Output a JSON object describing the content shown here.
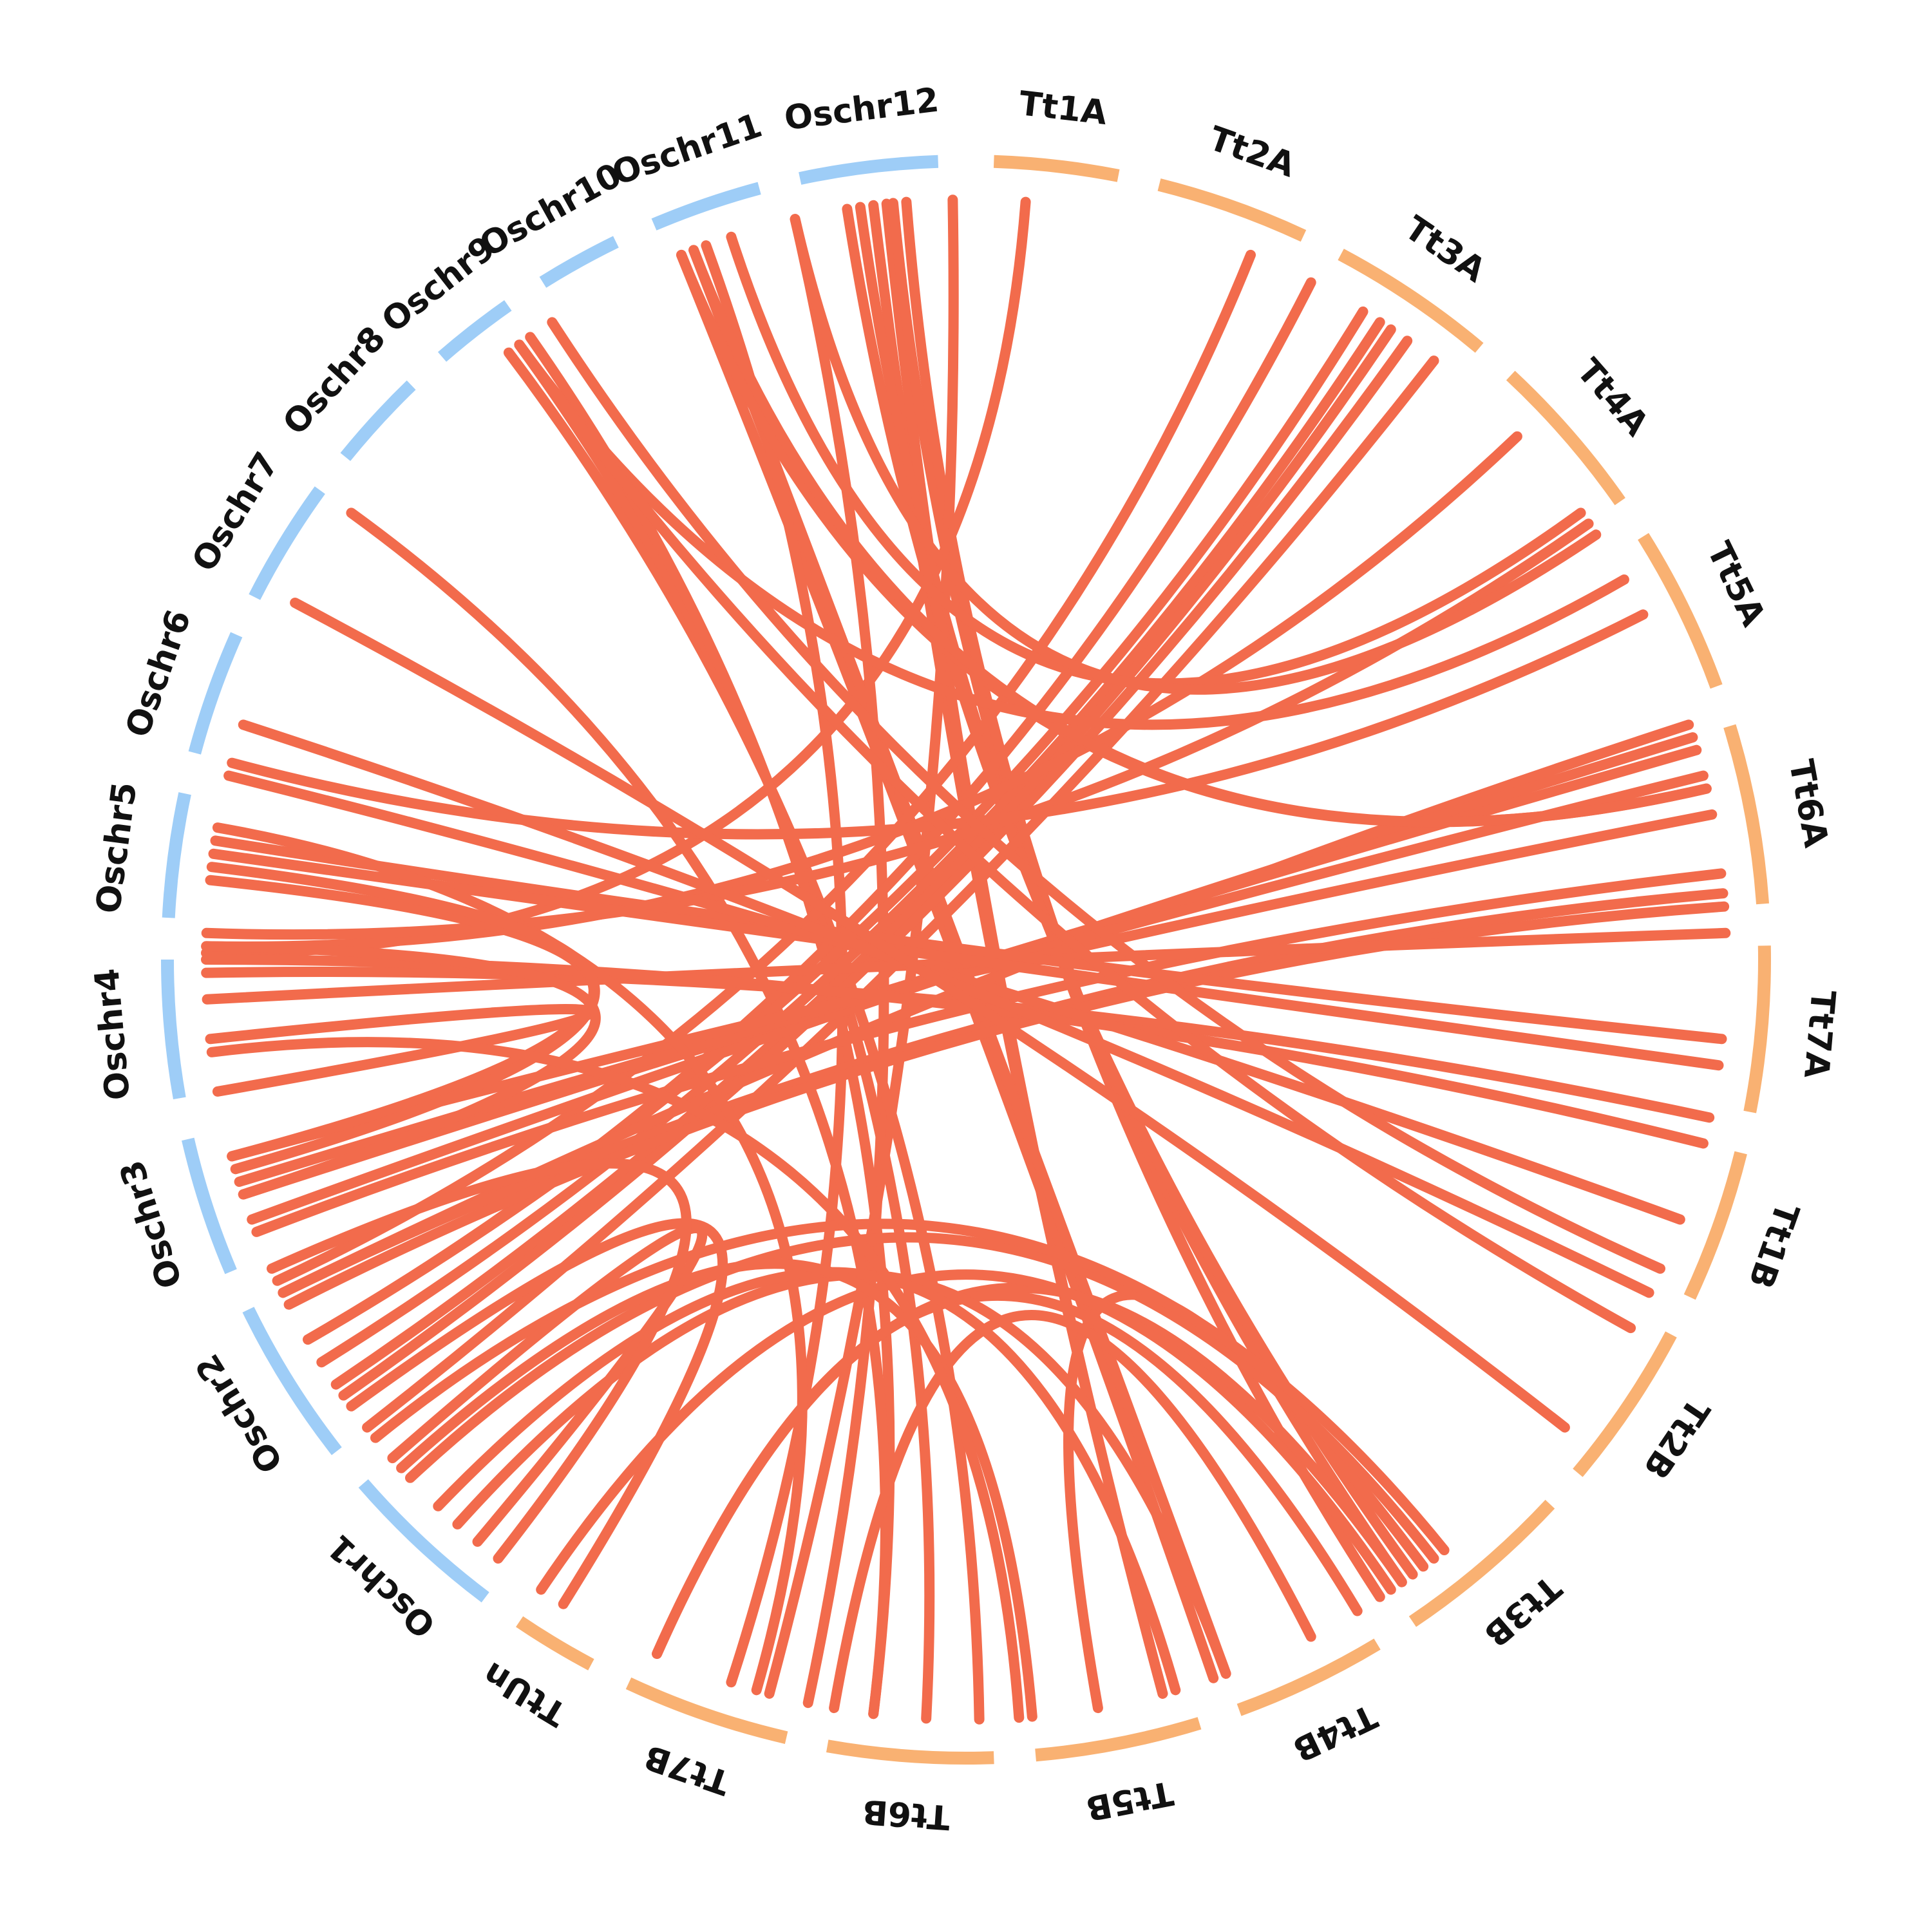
{
  "colors": {
    "rice": "#9ECDF7",
    "wheat": "#F9B172",
    "link": "#F26B4C",
    "label": "#111111",
    "background": "#FFFFFF"
  },
  "segments": [
    {
      "id": "Tt1A",
      "label": "Tt1A",
      "genome": "wheat",
      "start_deg": 2,
      "end_deg": 11
    },
    {
      "id": "Tt2A",
      "label": "Tt2A",
      "genome": "wheat",
      "start_deg": 14,
      "end_deg": 25
    },
    {
      "id": "Tt3A",
      "label": "Tt3A",
      "genome": "wheat",
      "start_deg": 28,
      "end_deg": 40
    },
    {
      "id": "Tt4A",
      "label": "Tt4A",
      "genome": "wheat",
      "start_deg": 43,
      "end_deg": 55
    },
    {
      "id": "Tt5A",
      "label": "Tt5A",
      "genome": "wheat",
      "start_deg": 58,
      "end_deg": 70
    },
    {
      "id": "Tt6A",
      "label": "Tt6A",
      "genome": "wheat",
      "start_deg": 73,
      "end_deg": 86
    },
    {
      "id": "Tt7A",
      "label": "Tt7A",
      "genome": "wheat",
      "start_deg": 89,
      "end_deg": 101
    },
    {
      "id": "Tt1B",
      "label": "Tt1B",
      "genome": "wheat",
      "start_deg": 104,
      "end_deg": 115
    },
    {
      "id": "Tt2B",
      "label": "Tt2B",
      "genome": "wheat",
      "start_deg": 118,
      "end_deg": 130
    },
    {
      "id": "Tt3B",
      "label": "Tt3B",
      "genome": "wheat",
      "start_deg": 133,
      "end_deg": 146
    },
    {
      "id": "Tt4B",
      "label": "Tt4B",
      "genome": "wheat",
      "start_deg": 149,
      "end_deg": 160
    },
    {
      "id": "Tt5B",
      "label": "Tt5B",
      "genome": "wheat",
      "start_deg": 163,
      "end_deg": 175
    },
    {
      "id": "Tt6B",
      "label": "Tt6B",
      "genome": "wheat",
      "start_deg": 178,
      "end_deg": 190
    },
    {
      "id": "Tt7B",
      "label": "Tt7B",
      "genome": "wheat",
      "start_deg": 193,
      "end_deg": 205
    },
    {
      "id": "TtUn",
      "label": "TtUn",
      "genome": "wheat",
      "start_deg": 208,
      "end_deg": 214
    },
    {
      "id": "Oschr1",
      "label": "Oschr1",
      "genome": "rice",
      "start_deg": 217,
      "end_deg": 229
    },
    {
      "id": "Oschr2",
      "label": "Oschr2",
      "genome": "rice",
      "start_deg": 232,
      "end_deg": 244
    },
    {
      "id": "Oschr3",
      "label": "Oschr3",
      "genome": "rice",
      "start_deg": 247,
      "end_deg": 257
    },
    {
      "id": "Oschr4",
      "label": "Oschr4",
      "genome": "rice",
      "start_deg": 260,
      "end_deg": 270
    },
    {
      "id": "Oschr5",
      "label": "Oschr5",
      "genome": "rice",
      "start_deg": 273,
      "end_deg": 282
    },
    {
      "id": "Oschr6",
      "label": "Oschr6",
      "genome": "rice",
      "start_deg": 285,
      "end_deg": 294
    },
    {
      "id": "Oschr7",
      "label": "Oschr7",
      "genome": "rice",
      "start_deg": 297,
      "end_deg": 306
    },
    {
      "id": "Oschr8",
      "label": "Oschr8",
      "genome": "rice",
      "start_deg": 309,
      "end_deg": 316
    },
    {
      "id": "Oschr9",
      "label": "Oschr9",
      "genome": "rice",
      "start_deg": 319,
      "end_deg": 325
    },
    {
      "id": "Oschr10",
      "label": "Oschr10",
      "genome": "rice",
      "start_deg": 328,
      "end_deg": 334
    },
    {
      "id": "Oschr11",
      "label": "Oschr11",
      "genome": "rice",
      "start_deg": 337,
      "end_deg": 345
    },
    {
      "id": "Oschr12",
      "label": "Oschr12",
      "genome": "rice",
      "start_deg": 348,
      "end_deg": 358
    }
  ],
  "links": [
    [
      353,
      165
    ],
    [
      354,
      165
    ],
    [
      354.5,
      147
    ],
    [
      355.5,
      147
    ],
    [
      359,
      195
    ],
    [
      4.5,
      270.5
    ],
    [
      352,
      145
    ],
    [
      351,
      144
    ],
    [
      338,
      161
    ],
    [
      339,
      160
    ],
    [
      340,
      198
    ],
    [
      347,
      192
    ],
    [
      323,
      179
    ],
    [
      324,
      183
    ],
    [
      325,
      187
    ],
    [
      306,
      187
    ],
    [
      22,
      245
    ],
    [
      27,
      240
    ],
    [
      31.5,
      240
    ],
    [
      33,
      238
    ],
    [
      34,
      236
    ],
    [
      35.5,
      235
    ],
    [
      38,
      232
    ],
    [
      46.5,
      271
    ],
    [
      55,
      272
    ],
    [
      63,
      285
    ],
    [
      72,
      244
    ],
    [
      73,
      250
    ],
    [
      74,
      252
    ],
    [
      76,
      253
    ],
    [
      79,
      255
    ],
    [
      83.5,
      249
    ],
    [
      85,
      244
    ],
    [
      86,
      243
    ],
    [
      88,
      267
    ],
    [
      77,
      338
    ],
    [
      77,
      339
    ],
    [
      60,
      324
    ],
    [
      54,
      342
    ],
    [
      56,
      347
    ],
    [
      96,
      279
    ],
    [
      98,
      278
    ],
    [
      102,
      269
    ],
    [
      104,
      270
    ],
    [
      110,
      284
    ],
    [
      116,
      288
    ],
    [
      114,
      327
    ],
    [
      119,
      324
    ],
    [
      128,
      298
    ],
    [
      143,
      170
    ],
    [
      145,
      204
    ],
    [
      146,
      214
    ],
    [
      142,
      227
    ],
    [
      141,
      231
    ],
    [
      149,
      204
    ],
    [
      153,
      190
    ],
    [
      196,
      280
    ],
    [
      160,
      222
    ],
    [
      164,
      224
    ],
    [
      234,
      212
    ],
    [
      175,
      228
    ],
    [
      260,
      264
    ],
    [
      255,
      276
    ],
    [
      254,
      277
    ],
    [
      229,
      220
    ],
    [
      246,
      218
    ],
    [
      271,
      252
    ],
    [
      263,
      176
    ]
  ]
}
